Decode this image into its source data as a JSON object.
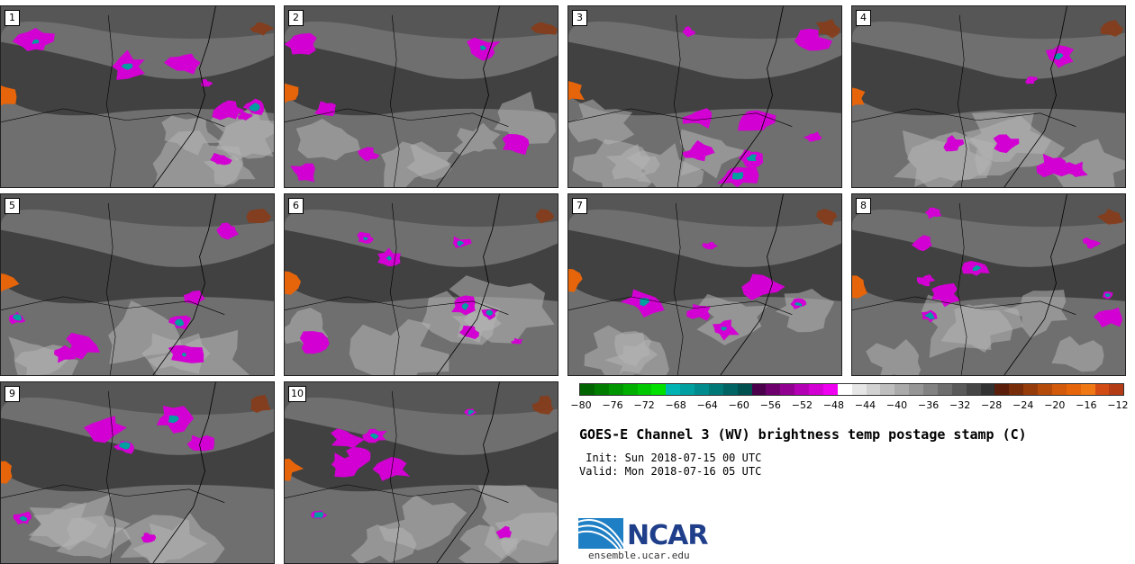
{
  "title": "GOES-E Channel 3 (WV) brightness temp postage stamp (C)",
  "init": " Init: Sun 2018-07-15 00 UTC",
  "valid": "Valid: Mon 2018-07-16 05 UTC",
  "logo": {
    "text": "NCAR",
    "icon": "ncar-logo-icon"
  },
  "site": "ensemble.ucar.edu",
  "panels": [
    {
      "label": "1"
    },
    {
      "label": "2"
    },
    {
      "label": "3"
    },
    {
      "label": "4"
    },
    {
      "label": "5"
    },
    {
      "label": "6"
    },
    {
      "label": "7"
    },
    {
      "label": "8"
    },
    {
      "label": "9"
    },
    {
      "label": "10"
    }
  ],
  "colorbar": {
    "ticks": [
      "−80",
      "−76",
      "−72",
      "−68",
      "−64",
      "−60",
      "−56",
      "−52",
      "−48",
      "−44",
      "−40",
      "−36",
      "−32",
      "−28",
      "−24",
      "−20",
      "−16",
      "−12"
    ],
    "colors": [
      "#006400",
      "#007d00",
      "#009600",
      "#00af00",
      "#00c800",
      "#00e100",
      "#00b4b4",
      "#00a0a0",
      "#008c8c",
      "#007878",
      "#006464",
      "#005050",
      "#4b004b",
      "#6e006e",
      "#910091",
      "#b400b4",
      "#d200d2",
      "#f000f0",
      "#ffffff",
      "#e6e6e6",
      "#d2d2d2",
      "#bebebe",
      "#aaaaaa",
      "#969696",
      "#828282",
      "#6e6e6e",
      "#5a5a5a",
      "#464646",
      "#323232",
      "#5a1e0a",
      "#782d0a",
      "#963c0a",
      "#b44b0a",
      "#d25a0a",
      "#e6640a",
      "#f07814",
      "#d24b14",
      "#b43c14"
    ]
  }
}
